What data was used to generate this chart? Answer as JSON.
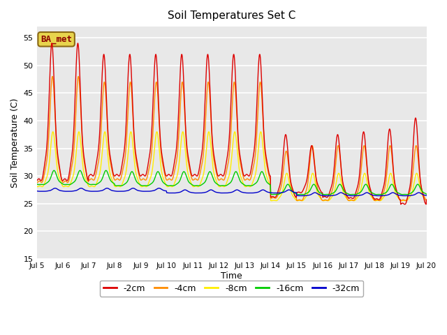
{
  "title": "Soil Temperatures Set C",
  "xlabel": "Time",
  "ylabel": "Soil Temperature (C)",
  "ylim": [
    15,
    57
  ],
  "yticks": [
    15,
    20,
    25,
    30,
    35,
    40,
    45,
    50,
    55
  ],
  "bg_color": "#e8e8e8",
  "plot_bg": "#e8e8e8",
  "annotation_text": "BA_met",
  "annotation_fg": "#8B0000",
  "annotation_bg": "#e8d44d",
  "annotation_border": "#8B6914",
  "series_colors": {
    "-2cm": "#dd0000",
    "-4cm": "#ff8c00",
    "-8cm": "#ffee00",
    "-16cm": "#00cc00",
    "-32cm": "#0000cc"
  },
  "legend_colors": [
    "#dd0000",
    "#ff8c00",
    "#ffee00",
    "#00cc00",
    "#0000cc"
  ],
  "legend_labels": [
    "-2cm",
    "-4cm",
    "-8cm",
    "-16cm",
    "-32cm"
  ],
  "n_days": 15,
  "start_day": 5,
  "hours_per_day": 24
}
